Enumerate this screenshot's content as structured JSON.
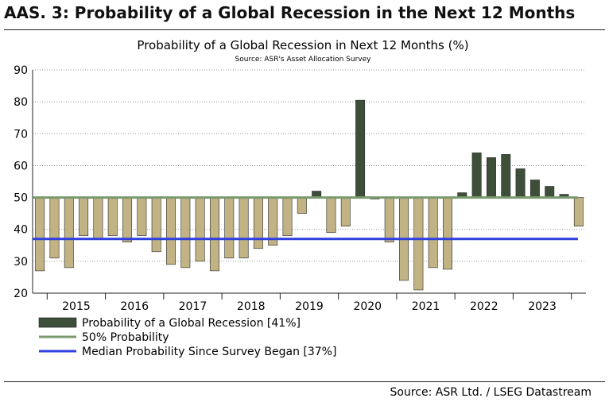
{
  "header": {
    "title": "AAS. 3: Probability of a Global Recession in the Next 12 Months"
  },
  "footer": {
    "source": "Source: ASR Ltd. / LSEG Datastream"
  },
  "chart_data": {
    "type": "bar",
    "title": "Probability of a Global Recession in Next 12 Months (%)",
    "subtitle": "Source: ASR's Asset Allocation Survey",
    "xlabel": "",
    "ylabel": "",
    "ylim": [
      20,
      90
    ],
    "yticks": [
      20,
      30,
      40,
      50,
      60,
      70,
      80,
      90
    ],
    "baseline": 50,
    "grid": true,
    "legend_position": "bottom-left",
    "year_labels": [
      "2015",
      "2016",
      "2017",
      "2018",
      "2019",
      "2020",
      "2021",
      "2022",
      "2023"
    ],
    "categories": [
      "2014Q4",
      "2015Q1",
      "2015Q2",
      "2015Q3",
      "2015Q4",
      "2016Q1",
      "2016Q2",
      "2016Q3",
      "2016Q4",
      "2017Q1",
      "2017Q2",
      "2017Q3",
      "2017Q4",
      "2018Q1",
      "2018Q2",
      "2018Q3",
      "2018Q4",
      "2019Q1",
      "2019Q2",
      "2019Q3",
      "2019Q4",
      "2020Q1",
      "2020Q2",
      "2020Q3",
      "2020Q4",
      "2021Q1",
      "2021Q2",
      "2021Q3",
      "2021Q4",
      "2022Q1",
      "2022Q2",
      "2022Q3",
      "2022Q4",
      "2023Q1",
      "2023Q2",
      "2023Q3",
      "2023Q4",
      "2024Q1"
    ],
    "values": [
      27,
      31,
      28,
      38,
      37,
      38,
      36,
      38,
      33,
      29,
      28,
      30,
      27,
      31,
      31,
      34,
      35,
      38,
      45,
      52,
      39,
      41,
      80.5,
      49.5,
      36,
      24,
      21,
      28,
      27.5,
      51.5,
      64,
      62.5,
      63.5,
      59,
      55.5,
      53.5,
      51,
      41
    ],
    "colors": {
      "above": "#3d4f39",
      "below": "#c2b384",
      "fifty_line": "#7a9a6e",
      "median_line": "#2f3fe0"
    },
    "series": [
      {
        "name": "Probability of a Global Recession [41%]",
        "values": [
          27,
          31,
          28,
          38,
          37,
          38,
          36,
          38,
          33,
          29,
          28,
          30,
          27,
          31,
          31,
          34,
          35,
          38,
          45,
          52,
          39,
          41,
          80.5,
          49.5,
          36,
          24,
          21,
          28,
          27.5,
          51.5,
          64,
          62.5,
          63.5,
          59,
          55.5,
          53.5,
          51,
          41
        ]
      },
      {
        "name": "50% Probability",
        "value": 50
      },
      {
        "name": "Median Probability Since Survey Began [37%]",
        "value": 37
      }
    ]
  }
}
